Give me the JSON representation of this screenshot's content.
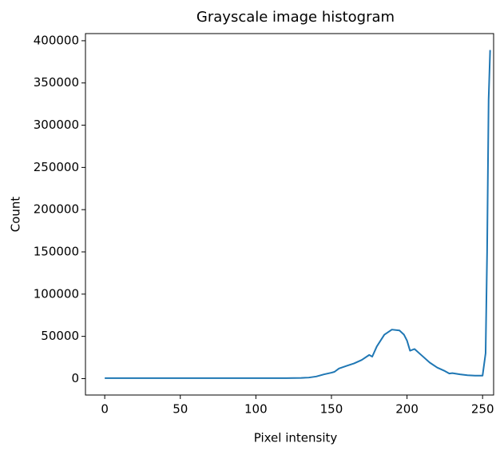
{
  "chart_data": {
    "type": "line",
    "title": "Grayscale image histogram",
    "x_label": "Pixel intensity",
    "y_label": "Count",
    "x": [
      0,
      10,
      20,
      30,
      40,
      50,
      60,
      70,
      80,
      90,
      100,
      110,
      120,
      130,
      135,
      140,
      145,
      150,
      152,
      155,
      160,
      165,
      170,
      175,
      177,
      180,
      185,
      190,
      195,
      198,
      200,
      202,
      205,
      210,
      215,
      220,
      225,
      228,
      230,
      235,
      240,
      245,
      250,
      252,
      253,
      254,
      255
    ],
    "values": [
      500,
      500,
      500,
      500,
      500,
      500,
      500,
      500,
      500,
      500,
      500,
      500,
      600,
      800,
      1200,
      2500,
      5000,
      7000,
      8000,
      12000,
      15000,
      18000,
      22000,
      28000,
      26000,
      38000,
      52000,
      58000,
      57000,
      52000,
      45000,
      33000,
      35000,
      27000,
      19000,
      13000,
      9000,
      6000,
      6500,
      5000,
      4000,
      3500,
      3500,
      30000,
      150000,
      330000,
      389000
    ],
    "color": "#1f77b4",
    "xlim": [
      -12.75,
      257.3
    ],
    "ylim": [
      -19450,
      408450
    ],
    "xticks": [
      0,
      50,
      100,
      150,
      200,
      250
    ],
    "yticks": [
      0,
      50000,
      100000,
      150000,
      200000,
      250000,
      300000,
      350000,
      400000
    ]
  }
}
